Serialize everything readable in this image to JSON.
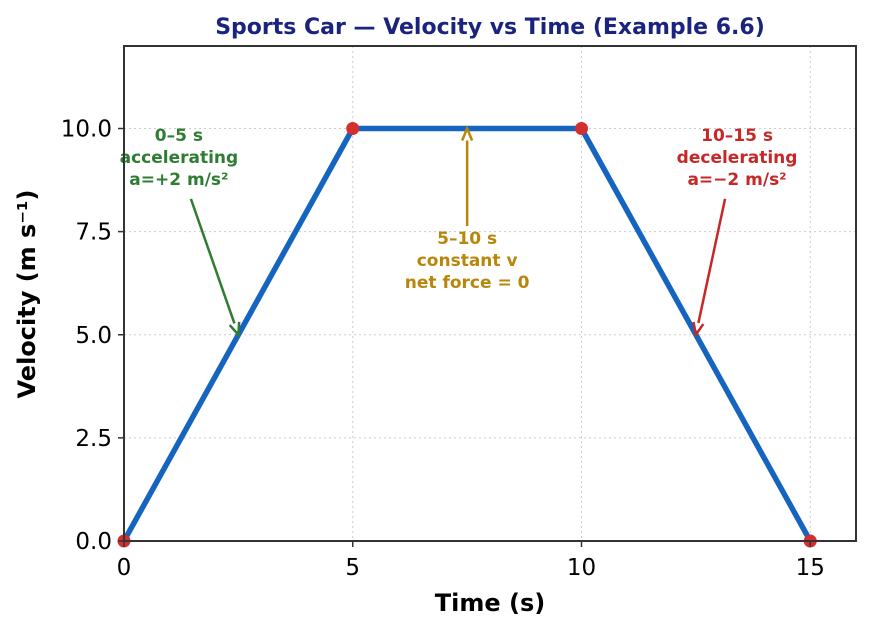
{
  "chart_data": {
    "type": "line",
    "title": "Sports Car — Velocity vs Time (Example 6.6)",
    "xlabel": "Time (s)",
    "ylabel": "Velocity (m s⁻¹)",
    "xlim": [
      0,
      16
    ],
    "ylim": [
      0,
      12
    ],
    "x_ticks": [
      0,
      5,
      10,
      15
    ],
    "x_tick_labels": [
      "0",
      "5",
      "10",
      "15"
    ],
    "y_ticks": [
      0,
      2.5,
      5,
      7.5,
      10
    ],
    "y_tick_labels": [
      "0.0",
      "2.5",
      "5.0",
      "7.5",
      "10.0"
    ],
    "grid": true,
    "series": [
      {
        "x": [
          0,
          5,
          10,
          15
        ],
        "y": [
          0,
          10,
          10,
          0
        ],
        "color": "#1565c0"
      }
    ],
    "markers": {
      "x": [
        0,
        5,
        10,
        15
      ],
      "y": [
        0,
        10,
        10,
        0
      ],
      "color": "#d32f2f"
    },
    "annotations": [
      {
        "lines": [
          "0–5 s",
          "accelerating",
          "a=+2 m/s²"
        ],
        "text_x": 1.2,
        "text_y": 9.7,
        "point_x": 2.5,
        "point_y": 5,
        "color": "#2e7d32"
      },
      {
        "lines": [
          "5–10 s",
          "constant v",
          "net force = 0"
        ],
        "text_x": 7.5,
        "text_y": 7.2,
        "point_x": 7.5,
        "point_y": 10,
        "color": "#b8860b"
      },
      {
        "lines": [
          "10–15 s",
          "decelerating",
          "a=−2 m/s²"
        ],
        "text_x": 13.4,
        "text_y": 9.7,
        "point_x": 12.5,
        "point_y": 5,
        "color": "#c62828"
      }
    ]
  },
  "colors": {
    "title": "#1a237e",
    "grid": "#cccccc",
    "frame": "#333333"
  }
}
